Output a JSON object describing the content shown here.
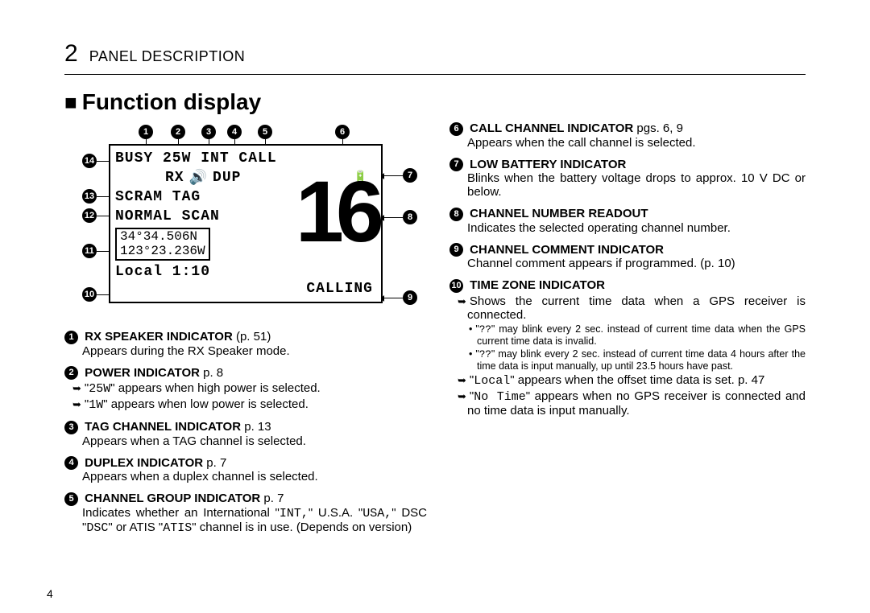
{
  "header": {
    "chapter_num": "2",
    "chapter_title": "PANEL DESCRIPTION"
  },
  "section_title": "Function display",
  "page_number": "4",
  "lcd": {
    "row1": "BUSY 25W  INT  CALL",
    "row2_left": "RX",
    "row2_mid": "DUP",
    "row3": "SCRAM  TAG",
    "row4": "NORMAL SCAN",
    "gps1": " 34°34.506N",
    "gps2": "123°23.236W",
    "row_local": "Local  1:10",
    "big": "16",
    "calling": "CALLING"
  },
  "callouts_top": [
    "1",
    "2",
    "3",
    "4",
    "5",
    "6"
  ],
  "callouts_right": [
    "7",
    "8",
    "9"
  ],
  "callouts_left": [
    "14",
    "13",
    "12",
    "11",
    "10"
  ],
  "left_items": [
    {
      "n": "1",
      "title": "RX SPEAKER INDICATOR",
      "ref": "(p. 51)",
      "body": "Appears during the RX Speaker mode."
    },
    {
      "n": "2",
      "title": "POWER INDICATOR",
      "ref": "p. 8",
      "subs": [
        "\"25W\" appears when high power is selected.",
        "\"1W\" appears when low power is selected."
      ]
    },
    {
      "n": "3",
      "title": "TAG CHANNEL INDICATOR",
      "ref": "p. 13",
      "body": "Appears when a TAG channel is selected."
    },
    {
      "n": "4",
      "title": "DUPLEX INDICATOR",
      "ref": "p. 7",
      "body": "Appears when a duplex channel is selected."
    },
    {
      "n": "5",
      "title": "CHANNEL GROUP INDICATOR",
      "ref": "p. 7",
      "body": "Indicates whether an International \"INT,\" U.S.A. \"USA,\" DSC \"DSC\" or ATIS \"ATIS\" channel is in use. (Depends on version)"
    }
  ],
  "right_items": [
    {
      "n": "6",
      "title": "CALL CHANNEL INDICATOR",
      "ref": "pgs. 6, 9",
      "body": "Appears when the call channel is selected."
    },
    {
      "n": "7",
      "title": "LOW BATTERY INDICATOR",
      "body": "Blinks when the battery voltage drops to approx. 10 V DC or below."
    },
    {
      "n": "8",
      "title": "CHANNEL NUMBER READOUT",
      "body": "Indicates the selected operating channel number."
    },
    {
      "n": "9",
      "title": "CHANNEL COMMENT INDICATOR",
      "body": "Channel comment appears if programmed. (p. 10)"
    },
    {
      "n": "10",
      "title": "TIME ZONE INDICATOR",
      "subs": [
        "Shows the current time data when a GPS receiver is connected."
      ],
      "notes": [
        "\"??\" may blink every 2 sec. instead of current time data when the GPS current time data is invalid.",
        "\"??\" may blink every 2 sec. instead of current time data 4 hours after the time data is input manually, up until 23.5 hours have past."
      ],
      "subs2": [
        "\"Local\" appears when the offset time data is set. p. 47",
        "\"No Time\" appears when no GPS receiver is connected and no time data is input manually."
      ]
    }
  ]
}
